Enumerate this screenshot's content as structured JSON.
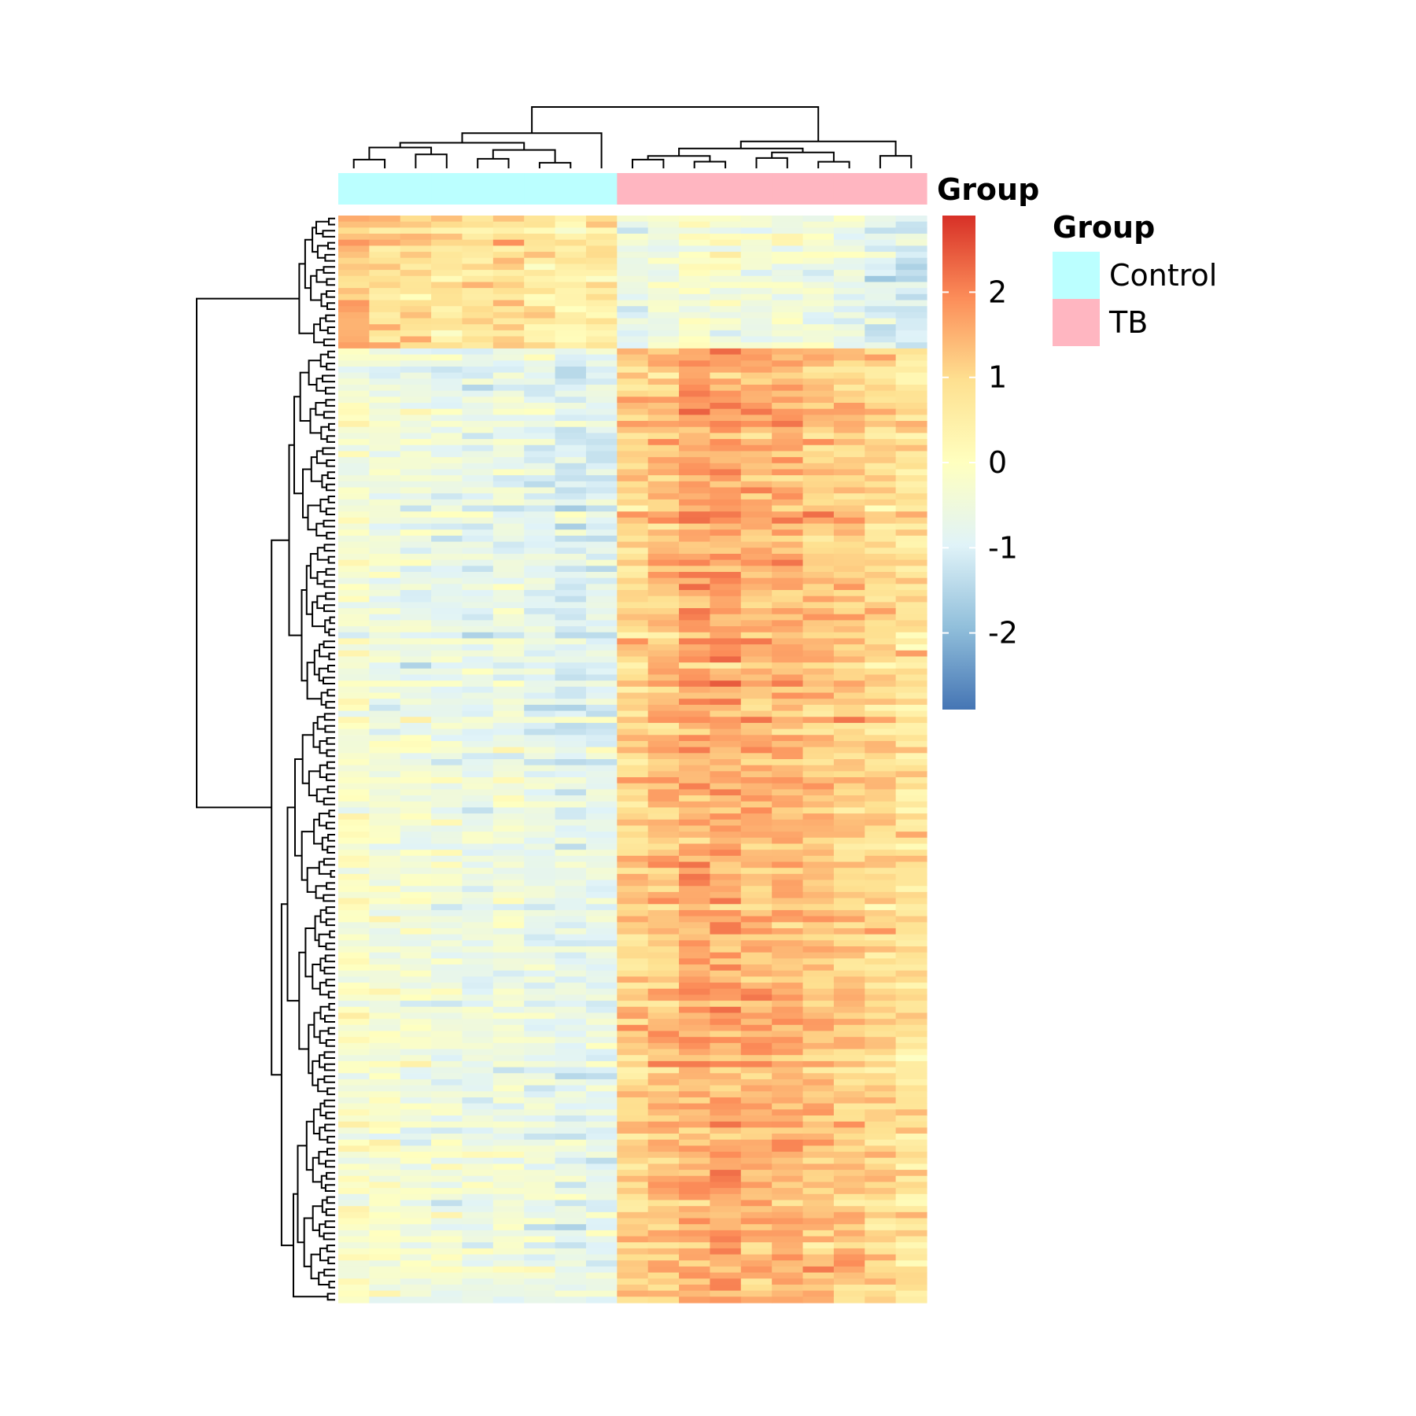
{
  "chart_data": {
    "type": "heatmap",
    "title": "",
    "rows": 180,
    "columns": [
      {
        "group": "Control"
      },
      {
        "group": "Control"
      },
      {
        "group": "Control"
      },
      {
        "group": "Control"
      },
      {
        "group": "Control"
      },
      {
        "group": "Control"
      },
      {
        "group": "Control"
      },
      {
        "group": "Control"
      },
      {
        "group": "Control"
      },
      {
        "group": "TB"
      },
      {
        "group": "TB"
      },
      {
        "group": "TB"
      },
      {
        "group": "TB"
      },
      {
        "group": "TB"
      },
      {
        "group": "TB"
      },
      {
        "group": "TB"
      },
      {
        "group": "TB"
      },
      {
        "group": "TB"
      },
      {
        "group": "TB"
      }
    ],
    "row_blocks": [
      {
        "rows": 22,
        "Control_mean": 0.9,
        "TB_mean": -0.8
      },
      {
        "rows": 60,
        "Control_mean": -0.6,
        "TB_mean": 1.0
      },
      {
        "rows": 98,
        "Control_mean": -0.4,
        "TB_mean": 1.0
      }
    ],
    "color_scale": {
      "min": -2.9,
      "max": 2.9,
      "ticks": [
        2,
        1,
        0,
        -1,
        -2
      ],
      "tick_labels": [
        "2",
        "1",
        "0",
        "-1",
        "-2"
      ],
      "colors": [
        "#4575b4",
        "#91bfdb",
        "#e0f3f8",
        "#ffffbf",
        "#fee090",
        "#fc8d59",
        "#d73027"
      ]
    },
    "annotation": {
      "title": "Group",
      "legend_title": "Group",
      "legend_items": [
        {
          "label": "Control",
          "color": "#bbffff"
        },
        {
          "label": "TB",
          "color": "#ffb6c1"
        }
      ]
    },
    "dendrograms": {
      "rows": true,
      "columns": true
    },
    "grid": false
  }
}
